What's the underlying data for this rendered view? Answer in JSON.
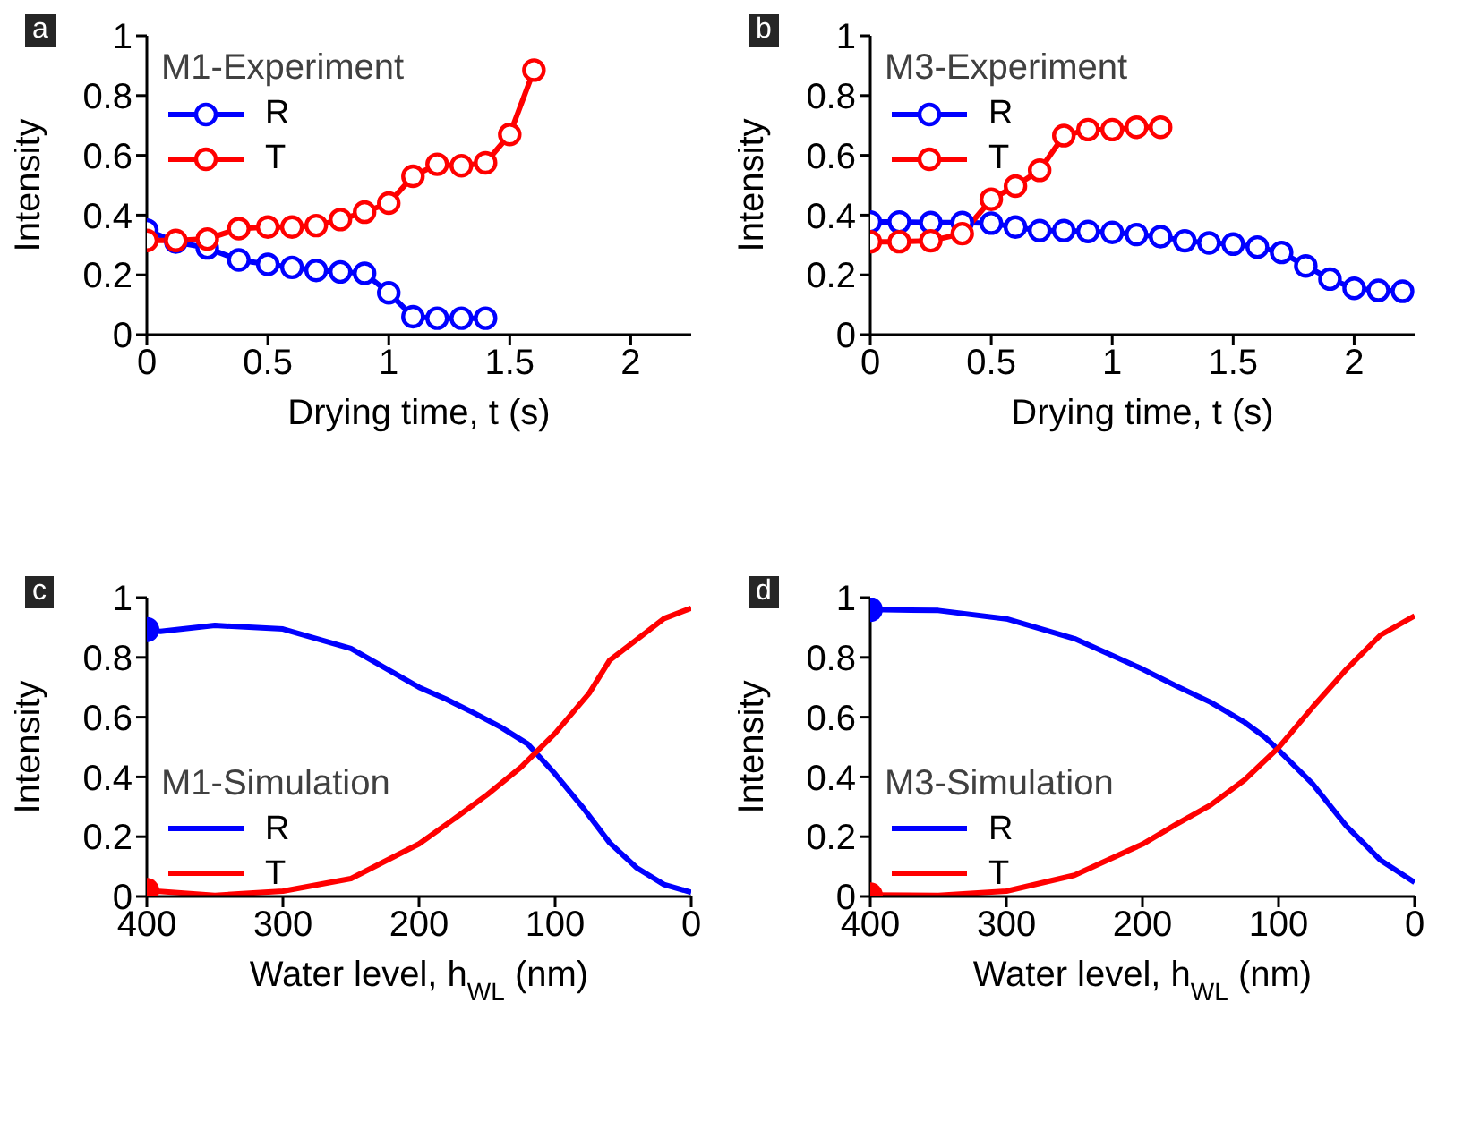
{
  "chart_data": [
    {
      "type": "line",
      "annotations": [
        "a"
      ],
      "legend_title": "M1-Experiment",
      "xlabel": "Drying time, t (s)",
      "ylabel": "Intensity",
      "xlim": [
        0,
        2.25
      ],
      "xticks": [
        0,
        0.5,
        1,
        1.5,
        2
      ],
      "ylim": [
        0,
        1
      ],
      "yticks": [
        0,
        0.2,
        0.4,
        0.6,
        0.8,
        1
      ],
      "legend": "top left",
      "marker": "circle",
      "series": [
        {
          "name": "R",
          "color": "#0000ff",
          "x": [
            0,
            0.12,
            0.25,
            0.38,
            0.5,
            0.6,
            0.7,
            0.8,
            0.9,
            1.0,
            1.1,
            1.2,
            1.3,
            1.4
          ],
          "values": [
            0.35,
            0.31,
            0.29,
            0.25,
            0.235,
            0.225,
            0.215,
            0.21,
            0.205,
            0.14,
            0.06,
            0.055,
            0.055,
            0.055
          ]
        },
        {
          "name": "T",
          "color": "#ff0000",
          "x": [
            0,
            0.12,
            0.25,
            0.38,
            0.5,
            0.6,
            0.7,
            0.8,
            0.9,
            1.0,
            1.1,
            1.2,
            1.3,
            1.4,
            1.5,
            1.6
          ],
          "values": [
            0.315,
            0.315,
            0.32,
            0.355,
            0.36,
            0.36,
            0.365,
            0.385,
            0.41,
            0.44,
            0.53,
            0.57,
            0.565,
            0.575,
            0.67,
            0.885
          ]
        }
      ]
    },
    {
      "type": "line",
      "annotations": [
        "b"
      ],
      "legend_title": "M3-Experiment",
      "xlabel": "Drying time, t (s)",
      "ylabel": "Intensity",
      "xlim": [
        0,
        2.25
      ],
      "xticks": [
        0,
        0.5,
        1,
        1.5,
        2
      ],
      "ylim": [
        0,
        1
      ],
      "yticks": [
        0,
        0.2,
        0.4,
        0.6,
        0.8,
        1
      ],
      "legend": "top left",
      "marker": "circle",
      "series": [
        {
          "name": "R",
          "color": "#0000ff",
          "x": [
            0,
            0.12,
            0.25,
            0.38,
            0.5,
            0.6,
            0.7,
            0.8,
            0.9,
            1.0,
            1.1,
            1.2,
            1.3,
            1.4,
            1.5,
            1.6,
            1.7,
            1.8,
            1.9,
            2.0,
            2.1,
            2.2
          ],
          "values": [
            0.377,
            0.377,
            0.375,
            0.375,
            0.373,
            0.36,
            0.348,
            0.348,
            0.345,
            0.342,
            0.335,
            0.328,
            0.314,
            0.307,
            0.303,
            0.293,
            0.275,
            0.23,
            0.186,
            0.155,
            0.148,
            0.145
          ]
        },
        {
          "name": "T",
          "color": "#ff0000",
          "x": [
            0,
            0.12,
            0.25,
            0.38,
            0.5,
            0.6,
            0.7,
            0.8,
            0.9,
            1.0,
            1.1,
            1.2
          ],
          "values": [
            0.311,
            0.311,
            0.314,
            0.338,
            0.453,
            0.497,
            0.55,
            0.666,
            0.686,
            0.686,
            0.694,
            0.694
          ]
        }
      ]
    },
    {
      "type": "line",
      "annotations": [
        "c"
      ],
      "legend_title": "M1-Simulation",
      "xlabel": "Water level, h$_{WL}$ (nm)",
      "ylabel": "Intensity",
      "xlim": [
        400,
        0
      ],
      "xticks": [
        400,
        300,
        200,
        100,
        0
      ],
      "ylim": [
        0,
        1
      ],
      "yticks": [
        0,
        0.2,
        0.4,
        0.6,
        0.8,
        1
      ],
      "legend": "left",
      "marker": "none",
      "series": [
        {
          "name": "R",
          "color": "#0000ff",
          "x": [
            400,
            390,
            350,
            300,
            250,
            200,
            180,
            160,
            140,
            120,
            100,
            80,
            60,
            40,
            20,
            0
          ],
          "values": [
            0.893,
            0.887,
            0.907,
            0.895,
            0.83,
            0.7,
            0.66,
            0.615,
            0.567,
            0.51,
            0.41,
            0.3,
            0.18,
            0.096,
            0.04,
            0.014
          ]
        },
        {
          "name": "T",
          "color": "#ff0000",
          "x": [
            400,
            350,
            300,
            250,
            200,
            175,
            150,
            125,
            100,
            75,
            60,
            40,
            20,
            0
          ],
          "values": [
            0.02,
            0.004,
            0.018,
            0.06,
            0.176,
            0.257,
            0.34,
            0.433,
            0.546,
            0.68,
            0.79,
            0.86,
            0.93,
            0.965
          ]
        },
        {
          "type": "scatter",
          "color": "#0000ff",
          "marker": "circle",
          "x": [
            400
          ],
          "values": [
            0.893
          ]
        },
        {
          "type": "scatter",
          "color": "#ff0000",
          "marker": "circle",
          "x": [
            400
          ],
          "values": [
            0.02
          ]
        }
      ]
    },
    {
      "type": "line",
      "annotations": [
        "d"
      ],
      "legend_title": "M3-Simulation",
      "xlabel": "Water level, h$_{WL}$ (nm)",
      "ylabel": "Intensity",
      "xlim": [
        400,
        0
      ],
      "xticks": [
        400,
        300,
        200,
        100,
        0
      ],
      "ylim": [
        0,
        1
      ],
      "yticks": [
        0,
        0.2,
        0.4,
        0.6,
        0.8,
        1
      ],
      "legend": "left",
      "marker": "none",
      "series": [
        {
          "name": "R",
          "color": "#0000ff",
          "x": [
            400,
            350,
            300,
            250,
            200,
            175,
            150,
            125,
            110,
            100,
            75,
            50,
            25,
            0
          ],
          "values": [
            0.96,
            0.957,
            0.929,
            0.863,
            0.761,
            0.704,
            0.65,
            0.583,
            0.533,
            0.49,
            0.377,
            0.235,
            0.121,
            0.047
          ]
        },
        {
          "name": "T",
          "color": "#ff0000",
          "x": [
            400,
            350,
            300,
            250,
            200,
            175,
            150,
            125,
            100,
            75,
            50,
            25,
            0
          ],
          "values": [
            0.005,
            0.004,
            0.018,
            0.071,
            0.175,
            0.242,
            0.306,
            0.39,
            0.498,
            0.633,
            0.761,
            0.875,
            0.939
          ]
        },
        {
          "type": "scatter",
          "color": "#0000ff",
          "marker": "circle",
          "x": [
            400
          ],
          "values": [
            0.96
          ]
        },
        {
          "type": "scatter",
          "color": "#ff0000",
          "marker": "circle",
          "x": [
            400
          ],
          "values": [
            0.005
          ]
        }
      ]
    }
  ]
}
